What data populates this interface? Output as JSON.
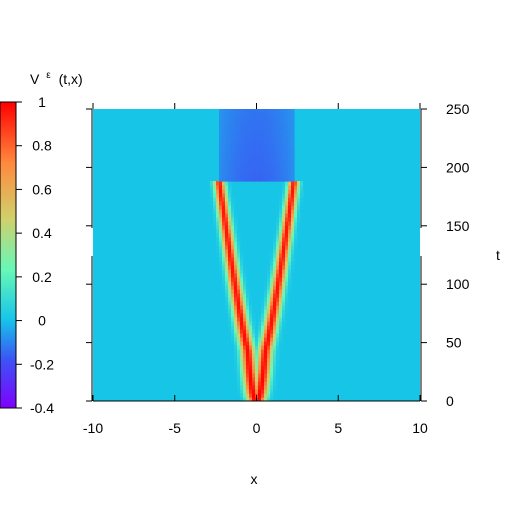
{
  "chart_data": {
    "type": "heatmap",
    "title": "",
    "xlabel": "x",
    "ylabel": "t",
    "xlim": [
      -10,
      10
    ],
    "ylim": [
      0,
      250
    ],
    "xticks": [
      "-10",
      "-5",
      "0",
      "5",
      "10"
    ],
    "yticks": [
      "0",
      "50",
      "100",
      "150",
      "200",
      "250"
    ],
    "colorbar": {
      "label_main": "V",
      "label_sup": "ε",
      "label_args": "(t,x)",
      "range": [
        -0.4,
        1
      ],
      "ticks": [
        "1",
        "0.8",
        "0.6",
        "0.4",
        "0.2",
        "0",
        "-0.2",
        "-0.4"
      ],
      "colormap": "rainbow",
      "colors": [
        "#7f00ff",
        "#3b55f5",
        "#17c5e8",
        "#66f8b8",
        "#d0d06b",
        "#ff8a3e",
        "#ff0000"
      ]
    },
    "field": {
      "background_value": 0,
      "fan_interior_value": -0.15,
      "front_peak_value": 1,
      "fronts_reach_x": [
        -2.3,
        2.3
      ],
      "fronts_reach_t": 190,
      "merge_t": 45
    }
  }
}
